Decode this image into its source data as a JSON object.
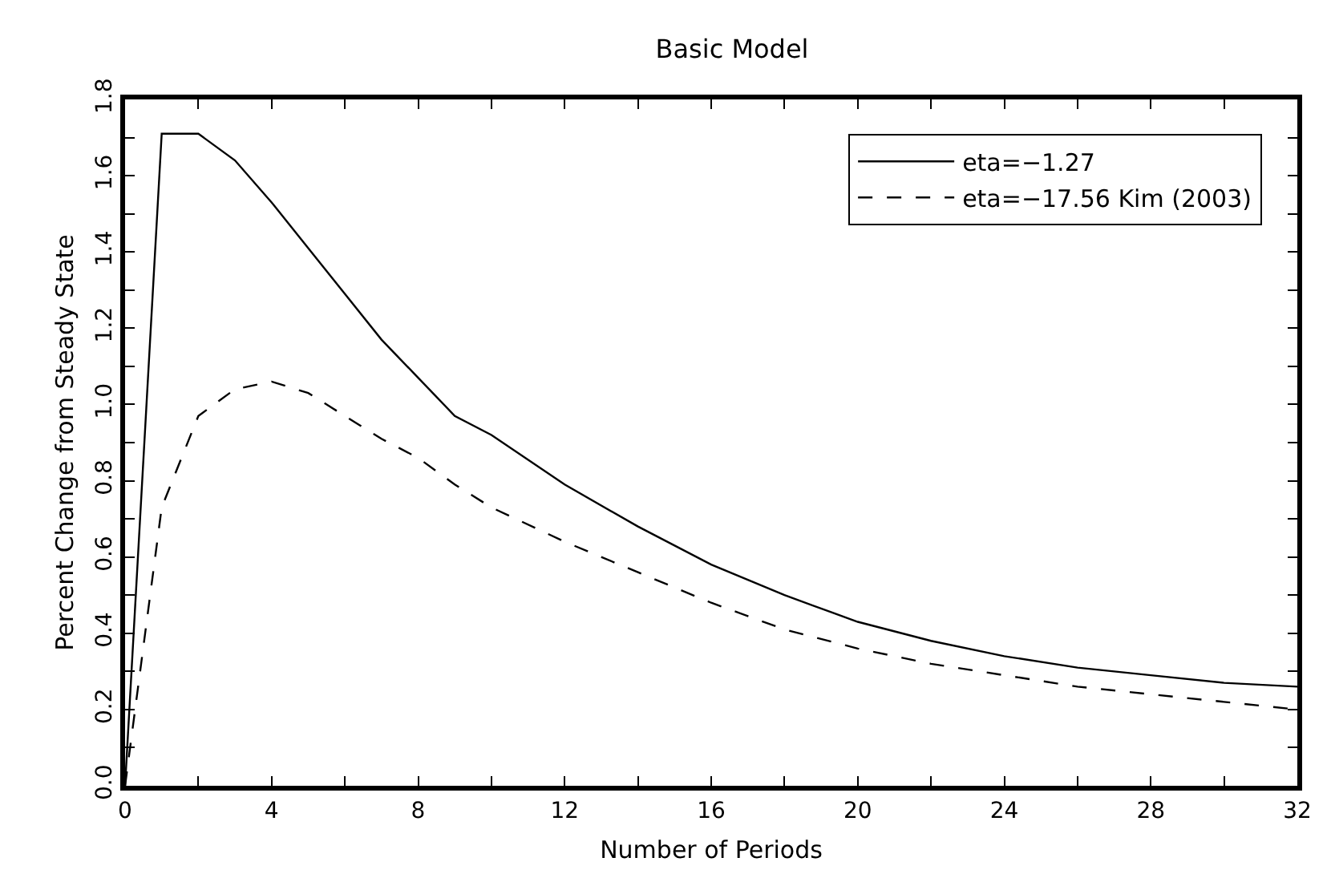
{
  "chart_data": {
    "type": "line",
    "title": "Basic Model",
    "xlabel": "Number of Periods",
    "ylabel": "Percent Change from Steady State",
    "xlim": [
      0,
      32
    ],
    "ylim": [
      0,
      1.8
    ],
    "xticks": [
      0,
      {
        "value": 2,
        "label": null
      },
      4,
      {
        "value": 6,
        "label": null
      },
      8,
      {
        "value": 10,
        "label": null
      },
      12,
      {
        "value": 14,
        "label": null
      },
      16,
      {
        "value": 18,
        "label": null
      },
      20,
      {
        "value": 22,
        "label": null
      },
      24,
      {
        "value": 26,
        "label": null
      },
      28,
      {
        "value": 30,
        "label": null
      },
      32
    ],
    "yticks": [
      {
        "value": 0,
        "label": "0.0"
      },
      {
        "value": 0.1,
        "label": null
      },
      0.2,
      {
        "value": 0.3,
        "label": null
      },
      0.4,
      {
        "value": 0.5,
        "label": null
      },
      0.6,
      {
        "value": 0.7,
        "label": null
      },
      0.8,
      {
        "value": 0.9,
        "label": null
      },
      {
        "value": 1.0,
        "label": "1.0"
      },
      {
        "value": 1.1,
        "label": null
      },
      1.2,
      {
        "value": 1.3,
        "label": null
      },
      1.4,
      {
        "value": 1.5,
        "label": null
      },
      1.6,
      {
        "value": 1.7,
        "label": null
      },
      1.8
    ],
    "legend": "top right",
    "series": [
      {
        "name": "eta=−1.27",
        "color": "#000000",
        "line_style": "solid",
        "x": [
          0,
          1,
          2,
          3,
          4,
          5,
          6,
          7,
          8,
          9,
          10,
          12,
          14,
          16,
          18,
          20,
          22,
          24,
          26,
          28,
          30,
          32
        ],
        "values": [
          0,
          1.71,
          1.71,
          1.64,
          1.53,
          1.41,
          1.29,
          1.17,
          1.07,
          0.97,
          0.92,
          0.79,
          0.68,
          0.58,
          0.5,
          0.43,
          0.38,
          0.34,
          0.31,
          0.29,
          0.27,
          0.26
        ]
      },
      {
        "name": "eta=−17.56 Kim (2003)",
        "color": "#000000",
        "line_style": "dashed",
        "x": [
          0,
          1,
          2,
          3,
          4,
          5,
          6,
          7,
          8,
          9,
          10,
          12,
          14,
          16,
          18,
          20,
          22,
          24,
          26,
          28,
          30,
          32
        ],
        "values": [
          0,
          0.73,
          0.97,
          1.04,
          1.06,
          1.03,
          0.97,
          0.91,
          0.86,
          0.79,
          0.73,
          0.64,
          0.56,
          0.48,
          0.41,
          0.36,
          0.32,
          0.29,
          0.26,
          0.24,
          0.22,
          0.2
        ]
      }
    ]
  }
}
